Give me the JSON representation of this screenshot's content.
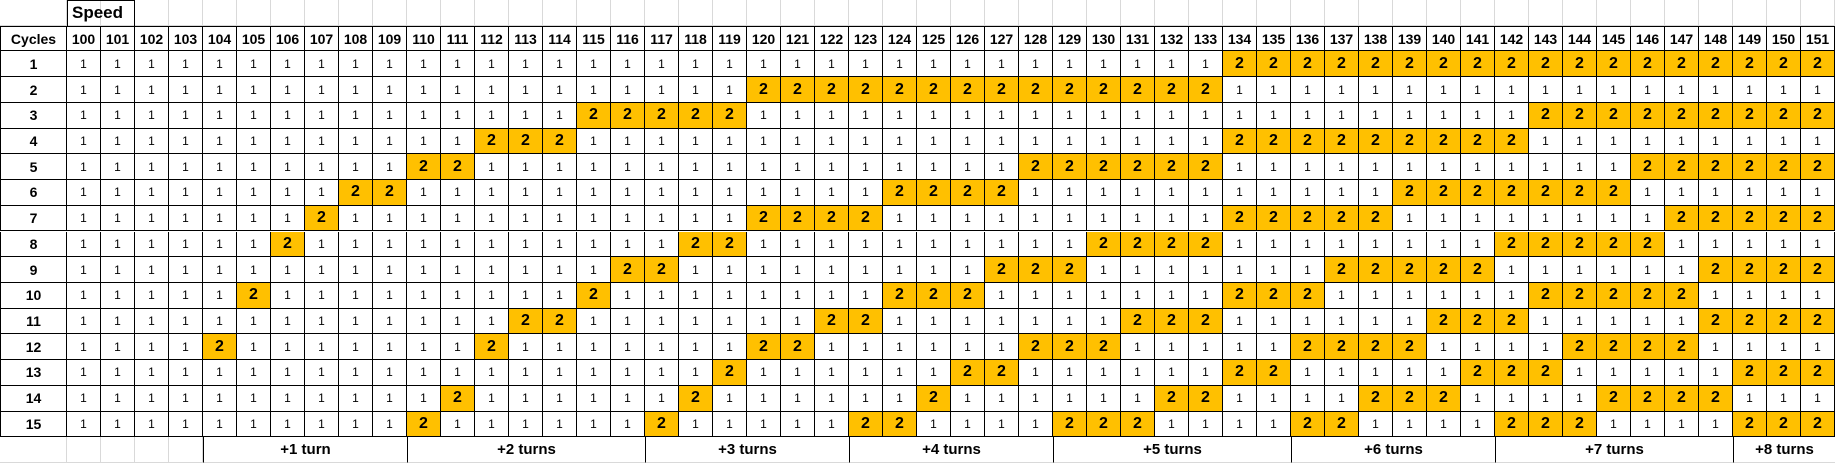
{
  "speed_label": "Speed",
  "cycles_label": "Cycles",
  "speeds": [
    100,
    101,
    102,
    103,
    104,
    105,
    106,
    107,
    108,
    109,
    110,
    111,
    112,
    113,
    114,
    115,
    116,
    117,
    118,
    119,
    120,
    121,
    122,
    123,
    124,
    125,
    126,
    127,
    128,
    129,
    130,
    131,
    132,
    133,
    134,
    135,
    136,
    137,
    138,
    139,
    140,
    141,
    142,
    143,
    144,
    145,
    146,
    147,
    148,
    149,
    150,
    151
  ],
  "rows": [
    {
      "cycle": 1,
      "values": [
        1,
        1,
        1,
        1,
        1,
        1,
        1,
        1,
        1,
        1,
        1,
        1,
        1,
        1,
        1,
        1,
        1,
        1,
        1,
        1,
        1,
        1,
        1,
        1,
        1,
        1,
        1,
        1,
        1,
        1,
        1,
        1,
        1,
        1,
        2,
        2,
        2,
        2,
        2,
        2,
        2,
        2,
        2,
        2,
        2,
        2,
        2,
        2,
        2,
        2,
        2,
        2
      ]
    },
    {
      "cycle": 2,
      "values": [
        1,
        1,
        1,
        1,
        1,
        1,
        1,
        1,
        1,
        1,
        1,
        1,
        1,
        1,
        1,
        1,
        1,
        1,
        1,
        1,
        2,
        2,
        2,
        2,
        2,
        2,
        2,
        2,
        2,
        2,
        2,
        2,
        2,
        2,
        1,
        1,
        1,
        1,
        1,
        1,
        1,
        1,
        1,
        1,
        1,
        1,
        1,
        1,
        1,
        1,
        1,
        1
      ]
    },
    {
      "cycle": 3,
      "values": [
        1,
        1,
        1,
        1,
        1,
        1,
        1,
        1,
        1,
        1,
        1,
        1,
        1,
        1,
        1,
        2,
        2,
        2,
        2,
        2,
        1,
        1,
        1,
        1,
        1,
        1,
        1,
        1,
        1,
        1,
        1,
        1,
        1,
        1,
        1,
        1,
        1,
        1,
        1,
        1,
        1,
        1,
        1,
        2,
        2,
        2,
        2,
        2,
        2,
        2,
        2,
        2
      ]
    },
    {
      "cycle": 4,
      "values": [
        1,
        1,
        1,
        1,
        1,
        1,
        1,
        1,
        1,
        1,
        1,
        1,
        2,
        2,
        2,
        1,
        1,
        1,
        1,
        1,
        1,
        1,
        1,
        1,
        1,
        1,
        1,
        1,
        1,
        1,
        1,
        1,
        1,
        1,
        2,
        2,
        2,
        2,
        2,
        2,
        2,
        2,
        2,
        1,
        1,
        1,
        1,
        1,
        1,
        1,
        1,
        1
      ]
    },
    {
      "cycle": 5,
      "values": [
        1,
        1,
        1,
        1,
        1,
        1,
        1,
        1,
        1,
        1,
        2,
        2,
        1,
        1,
        1,
        1,
        1,
        1,
        1,
        1,
        1,
        1,
        1,
        1,
        1,
        1,
        1,
        1,
        2,
        2,
        2,
        2,
        2,
        2,
        1,
        1,
        1,
        1,
        1,
        1,
        1,
        1,
        1,
        1,
        1,
        1,
        2,
        2,
        2,
        2,
        2,
        2
      ]
    },
    {
      "cycle": 6,
      "values": [
        1,
        1,
        1,
        1,
        1,
        1,
        1,
        1,
        2,
        2,
        1,
        1,
        1,
        1,
        1,
        1,
        1,
        1,
        1,
        1,
        1,
        1,
        1,
        1,
        2,
        2,
        2,
        2,
        1,
        1,
        1,
        1,
        1,
        1,
        1,
        1,
        1,
        1,
        1,
        2,
        2,
        2,
        2,
        2,
        2,
        2,
        1,
        1,
        1,
        1,
        1,
        1
      ]
    },
    {
      "cycle": 7,
      "values": [
        1,
        1,
        1,
        1,
        1,
        1,
        1,
        2,
        1,
        1,
        1,
        1,
        1,
        1,
        1,
        1,
        1,
        1,
        1,
        1,
        2,
        2,
        2,
        2,
        1,
        1,
        1,
        1,
        1,
        1,
        1,
        1,
        1,
        1,
        2,
        2,
        2,
        2,
        2,
        1,
        1,
        1,
        1,
        1,
        1,
        1,
        1,
        2,
        2,
        2,
        2,
        2
      ]
    },
    {
      "cycle": 8,
      "values": [
        1,
        1,
        1,
        1,
        1,
        1,
        2,
        1,
        1,
        1,
        1,
        1,
        1,
        1,
        1,
        1,
        1,
        1,
        2,
        2,
        1,
        1,
        1,
        1,
        1,
        1,
        1,
        1,
        1,
        1,
        2,
        2,
        2,
        2,
        1,
        1,
        1,
        1,
        1,
        1,
        1,
        1,
        2,
        2,
        2,
        2,
        2,
        1,
        1,
        1,
        1,
        1
      ]
    },
    {
      "cycle": 9,
      "values": [
        1,
        1,
        1,
        1,
        1,
        1,
        1,
        1,
        1,
        1,
        1,
        1,
        1,
        1,
        1,
        1,
        2,
        2,
        1,
        1,
        1,
        1,
        1,
        1,
        1,
        1,
        1,
        2,
        2,
        2,
        1,
        1,
        1,
        1,
        1,
        1,
        1,
        2,
        2,
        2,
        2,
        2,
        1,
        1,
        1,
        1,
        1,
        1,
        2,
        2,
        2,
        2
      ]
    },
    {
      "cycle": 10,
      "values": [
        1,
        1,
        1,
        1,
        1,
        2,
        1,
        1,
        1,
        1,
        1,
        1,
        1,
        1,
        1,
        2,
        1,
        1,
        1,
        1,
        1,
        1,
        1,
        1,
        2,
        2,
        2,
        1,
        1,
        1,
        1,
        1,
        1,
        1,
        2,
        2,
        2,
        1,
        1,
        1,
        1,
        1,
        1,
        2,
        2,
        2,
        2,
        2,
        1,
        1,
        1,
        1
      ]
    },
    {
      "cycle": 11,
      "values": [
        1,
        1,
        1,
        1,
        1,
        1,
        1,
        1,
        1,
        1,
        1,
        1,
        1,
        2,
        2,
        1,
        1,
        1,
        1,
        1,
        1,
        1,
        2,
        2,
        1,
        1,
        1,
        1,
        1,
        1,
        1,
        2,
        2,
        2,
        1,
        1,
        1,
        1,
        1,
        1,
        2,
        2,
        2,
        1,
        1,
        1,
        1,
        1,
        2,
        2,
        2,
        2
      ]
    },
    {
      "cycle": 12,
      "values": [
        1,
        1,
        1,
        1,
        2,
        1,
        1,
        1,
        1,
        1,
        1,
        1,
        2,
        1,
        1,
        1,
        1,
        1,
        1,
        1,
        2,
        2,
        1,
        1,
        1,
        1,
        1,
        1,
        2,
        2,
        2,
        1,
        1,
        1,
        1,
        1,
        2,
        2,
        2,
        2,
        1,
        1,
        1,
        1,
        2,
        2,
        2,
        2,
        1,
        1,
        1,
        1
      ]
    },
    {
      "cycle": 13,
      "values": [
        1,
        1,
        1,
        1,
        1,
        1,
        1,
        1,
        1,
        1,
        1,
        1,
        1,
        1,
        1,
        1,
        1,
        1,
        1,
        2,
        1,
        1,
        1,
        1,
        1,
        1,
        2,
        2,
        1,
        1,
        1,
        1,
        1,
        1,
        2,
        2,
        1,
        1,
        1,
        1,
        1,
        2,
        2,
        2,
        1,
        1,
        1,
        1,
        1,
        2,
        2,
        2
      ]
    },
    {
      "cycle": 14,
      "values": [
        1,
        1,
        1,
        1,
        1,
        1,
        1,
        1,
        1,
        1,
        1,
        2,
        1,
        1,
        1,
        1,
        1,
        1,
        2,
        1,
        1,
        1,
        1,
        1,
        1,
        2,
        1,
        1,
        1,
        1,
        1,
        1,
        2,
        2,
        1,
        1,
        1,
        1,
        2,
        2,
        2,
        1,
        1,
        1,
        1,
        2,
        2,
        2,
        2,
        1,
        1,
        1
      ]
    },
    {
      "cycle": 15,
      "values": [
        1,
        1,
        1,
        1,
        1,
        1,
        1,
        1,
        1,
        1,
        2,
        1,
        1,
        1,
        1,
        1,
        1,
        2,
        1,
        1,
        1,
        1,
        1,
        2,
        2,
        1,
        1,
        1,
        1,
        2,
        2,
        2,
        1,
        1,
        1,
        1,
        2,
        2,
        1,
        1,
        1,
        1,
        2,
        2,
        2,
        1,
        1,
        1,
        1,
        2,
        2,
        2
      ]
    }
  ],
  "turn_groups": [
    "+1 turn",
    "+2 turns",
    "+3 turns",
    "+4 turns",
    "+5 turns",
    "+6 turns",
    "+7 turns",
    "+8 turns"
  ]
}
